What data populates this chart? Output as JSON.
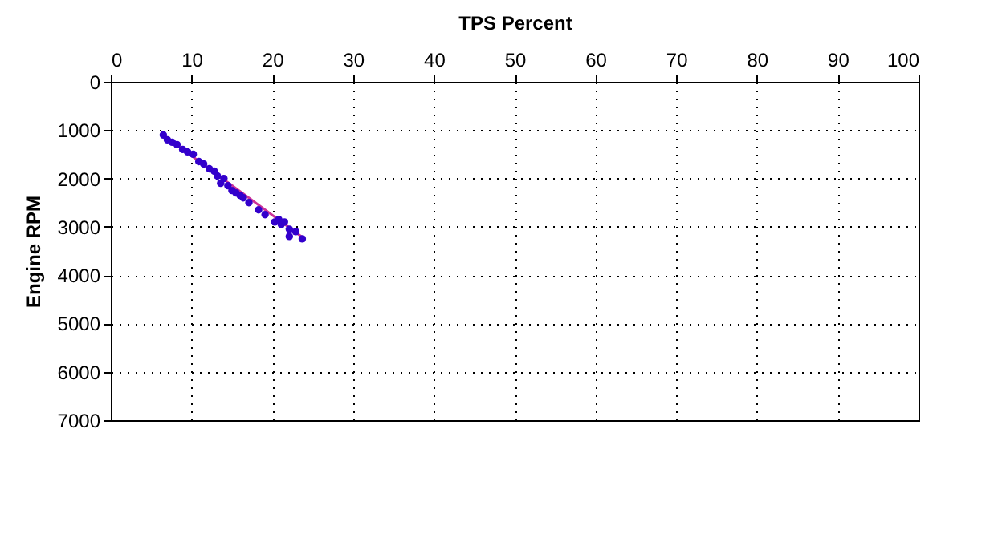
{
  "chart_data": {
    "type": "scatter",
    "xlabel": "TPS Percent",
    "ylabel": "Engine RPM",
    "xlim": [
      0,
      100
    ],
    "xticks": [
      0,
      10,
      20,
      30,
      40,
      50,
      60,
      70,
      80,
      90,
      100
    ],
    "ylim": [
      7000,
      0
    ],
    "yticks": [
      0,
      1000,
      2000,
      3000,
      4000,
      5000,
      6000,
      7000
    ],
    "grid": true,
    "series": [
      {
        "type": "line",
        "color": "#cc3399",
        "x": [
          6.5,
          24
        ],
        "values": [
          1100,
          3250
        ]
      },
      {
        "color": "#3300cc",
        "marker": "circle",
        "x": [
          6.5,
          7.0,
          7.6,
          8.2,
          8.9,
          9.5,
          10.2,
          10.9,
          11.5,
          12.2,
          12.8,
          13.2,
          14.0,
          13.6,
          14.5,
          15.0,
          15.5,
          16.0,
          16.4,
          17.1,
          18.3,
          19.1,
          20.3,
          20.8,
          21.1,
          21.5,
          22.1,
          22.9,
          22.1,
          23.7
        ],
        "values": [
          1100,
          1200,
          1250,
          1300,
          1400,
          1450,
          1500,
          1650,
          1700,
          1800,
          1850,
          1950,
          2000,
          2100,
          2150,
          2250,
          2300,
          2350,
          2400,
          2500,
          2650,
          2750,
          2900,
          2850,
          2950,
          2900,
          3050,
          3100,
          3200,
          3250
        ]
      }
    ]
  }
}
